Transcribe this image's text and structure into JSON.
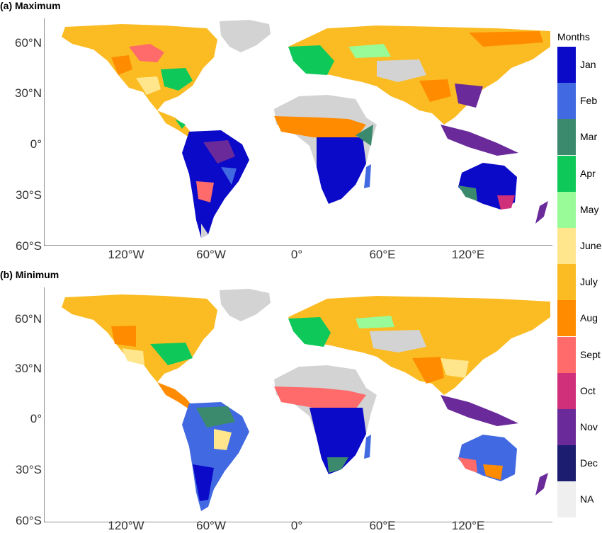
{
  "panels": [
    {
      "title": "(a) Maximum"
    },
    {
      "title": "(b) Minimum"
    }
  ],
  "axes": {
    "y_ticks": [
      "60°N",
      "30°N",
      "0°",
      "30°S",
      "60°S"
    ],
    "x_ticks": [
      "120°W",
      "60°W",
      "0°",
      "60°E",
      "120°E"
    ]
  },
  "legend": {
    "title": "Months",
    "items": [
      {
        "label": "Jan",
        "color": "#0a0ac8"
      },
      {
        "label": "Feb",
        "color": "#4169e1"
      },
      {
        "label": "Mar",
        "color": "#3c8a6e"
      },
      {
        "label": "Apr",
        "color": "#0fc85a"
      },
      {
        "label": "May",
        "color": "#98fb98"
      },
      {
        "label": "June",
        "color": "#ffe68c"
      },
      {
        "label": "July",
        "color": "#fbbc23"
      },
      {
        "label": "Aug",
        "color": "#ff8c00"
      },
      {
        "label": "Sept",
        "color": "#ff6a6a"
      },
      {
        "label": "Oct",
        "color": "#d0307a"
      },
      {
        "label": "Nov",
        "color": "#6a2a9a"
      },
      {
        "label": "Dec",
        "color": "#1c1c70"
      },
      {
        "label": "NA",
        "color": "#efefef"
      }
    ]
  },
  "colors": {
    "land_no_data": "#d3d3d3",
    "background": "#ffffff"
  }
}
